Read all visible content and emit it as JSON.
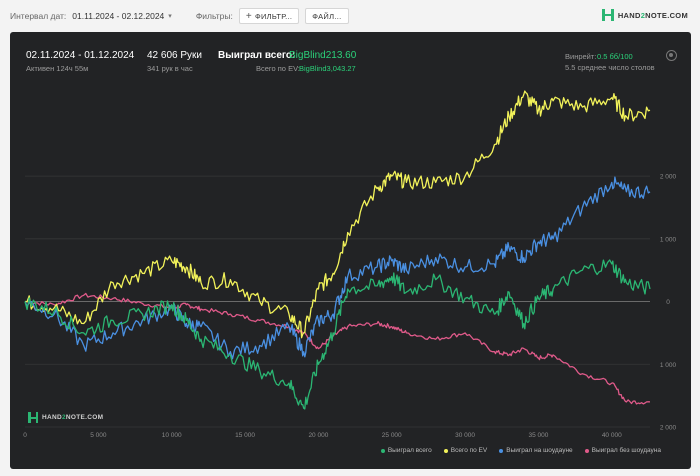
{
  "topbar": {
    "date_label": "Интервал дат:",
    "date_value": "01.11.2024 - 02.12.2024",
    "filters_label": "Фильтры:",
    "filter_button": "ФИЛЬТР...",
    "file_button": "ФАЙЛ..."
  },
  "logo": {
    "part1": "HAND",
    "part2": "2",
    "part3": "NOTE.COM"
  },
  "stats": {
    "period": "02.11.2024 - 01.12.2024",
    "active": "Активен 124ч 55м",
    "hands": "42 606 Руки",
    "hands_per_hour": "341 рук в час",
    "won_total_label": "Выиграл всего:",
    "won_total_value": "BigBlind213.60",
    "ev_label": "Всего по EV:",
    "ev_value": "BigBlind3,043.27",
    "winrate_label": "Винрейт:",
    "winrate_value": "0.5 бб/100",
    "avg_tables": "5.5 среднее число столов"
  },
  "watermark": {
    "part1": "HAND",
    "part2": "2",
    "part3": "NOTE.COM"
  },
  "colors": {
    "green": "#2bb673",
    "yellow": "#f2f25a",
    "blue": "#4a90e2",
    "pink": "#e05a8a"
  },
  "chart_data": {
    "type": "line",
    "xlim": [
      0,
      42606
    ],
    "ylim": [
      -2000,
      3500
    ],
    "x_ticks": [
      "0",
      "5 000",
      "10 000",
      "15 000",
      "20 000",
      "25 000",
      "30 000",
      "35 000",
      "40 000"
    ],
    "x_tick_values": [
      0,
      5000,
      10000,
      15000,
      20000,
      25000,
      30000,
      35000,
      40000
    ],
    "y_ticks": [
      "2 000",
      "1 000",
      "0",
      "1 000",
      "2 000"
    ],
    "y_tick_values": [
      2000,
      1000,
      0,
      -1000,
      -2000
    ],
    "x": [
      0,
      2000,
      4000,
      6000,
      8000,
      10000,
      11000,
      12000,
      14000,
      16000,
      18000,
      19000,
      20000,
      21000,
      22000,
      24000,
      25000,
      26000,
      28000,
      30000,
      32000,
      33000,
      34000,
      35000,
      36000,
      38000,
      40000,
      41000,
      42606
    ],
    "series": [
      {
        "name": "Выиграл всего",
        "color": "#2bb673",
        "values": [
          0,
          -150,
          -500,
          -300,
          -200,
          -50,
          -300,
          -600,
          -850,
          -1100,
          -1300,
          -1700,
          -1000,
          -500,
          200,
          250,
          400,
          150,
          350,
          50,
          -200,
          150,
          -350,
          50,
          200,
          500,
          600,
          300,
          200
        ]
      },
      {
        "name": "Всего по EV",
        "color": "#f2f25a",
        "values": [
          0,
          -100,
          -350,
          300,
          450,
          650,
          550,
          300,
          350,
          0,
          -200,
          -500,
          200,
          450,
          1100,
          1800,
          2000,
          1900,
          1900,
          2000,
          2500,
          2950,
          3300,
          3050,
          3200,
          3100,
          3250,
          2950,
          3050
        ]
      },
      {
        "name": "Выиграл на шоудауне",
        "color": "#4a90e2",
        "values": [
          0,
          -200,
          -700,
          -500,
          -300,
          -100,
          -350,
          -400,
          -800,
          -700,
          -400,
          -800,
          -300,
          -200,
          400,
          550,
          650,
          500,
          700,
          550,
          600,
          850,
          700,
          950,
          1000,
          1500,
          1900,
          1750,
          1750
        ]
      },
      {
        "name": "Выиграл без шоудауна",
        "color": "#e05a8a",
        "values": [
          0,
          -50,
          100,
          50,
          -30,
          -100,
          -50,
          -120,
          -200,
          -300,
          -400,
          -500,
          -750,
          -550,
          -400,
          -350,
          -400,
          -500,
          -600,
          -500,
          -800,
          -850,
          -750,
          -900,
          -850,
          -1150,
          -1300,
          -1600,
          -1600
        ]
      }
    ]
  }
}
